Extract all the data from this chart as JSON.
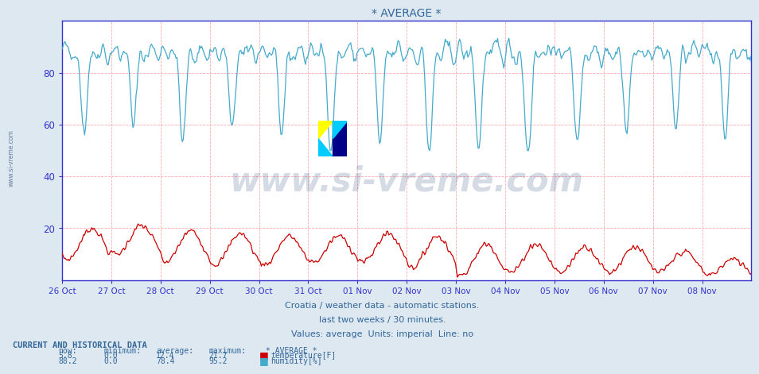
{
  "title": "* AVERAGE *",
  "bg_color": "#dde8f0",
  "plot_bg_color": "#ffffff",
  "grid_color_h": "#ffaaaa",
  "grid_color_v": "#ffaaaa",
  "axis_color": "#3333cc",
  "tick_color": "#3333cc",
  "text_color": "#336699",
  "watermark_text": "www.si-vreme.com",
  "watermark_color": "#1a3a6b",
  "ylabel_left_text": "www.si-vreme.com",
  "subtitle1": "Croatia / weather data - automatic stations.",
  "subtitle2": "last two weeks / 30 minutes.",
  "subtitle3": "Values: average  Units: imperial  Line: no",
  "table_title": "CURRENT AND HISTORICAL DATA",
  "col_headers": [
    "now:",
    "minimum:",
    "average:",
    "maximum:",
    "* AVERAGE *"
  ],
  "temp_row": [
    "5.8",
    "0.0",
    "12.4",
    "21.7",
    "temperature[F]"
  ],
  "hum_row": [
    "88.2",
    "0.0",
    "78.4",
    "95.2",
    "humidity[%]"
  ],
  "temp_color": "#cc0000",
  "hum_color": "#44aacc",
  "logo_yellow": "#ffff00",
  "logo_cyan": "#00ccff",
  "logo_blue": "#000088",
  "ylim": [
    0,
    100
  ],
  "yticks": [
    20,
    40,
    60,
    80
  ],
  "date_labels": [
    "26 Oct",
    "27 Oct",
    "28 Oct",
    "29 Oct",
    "30 Oct",
    "31 Oct",
    "01 Nov",
    "02 Nov",
    "03 Nov",
    "04 Nov",
    "05 Nov",
    "06 Nov",
    "07 Nov",
    "08 Nov"
  ],
  "n_points": 672
}
